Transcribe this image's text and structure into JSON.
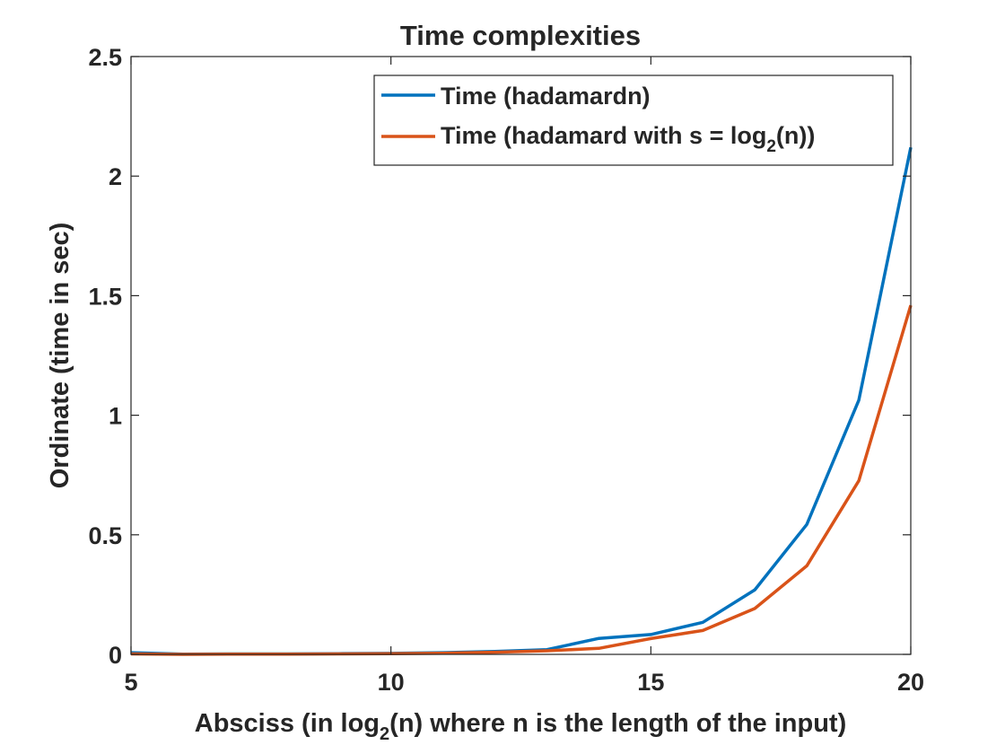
{
  "chart_data": {
    "type": "line",
    "title": "Time complexities",
    "xlabel": {
      "pre": "Absciss (in log",
      "sub": "2",
      "post": "(n) where n is the length of the input)"
    },
    "ylabel": "Ordinate (time in sec)",
    "xlim": [
      5,
      20
    ],
    "ylim": [
      0,
      2.5
    ],
    "xticks": [
      5,
      10,
      15,
      20
    ],
    "xtick_labels": [
      "5",
      "10",
      "15",
      "20"
    ],
    "yticks": [
      0,
      0.5,
      1,
      1.5,
      2,
      2.5
    ],
    "ytick_labels": [
      "0",
      "0.5",
      "1",
      "1.5",
      "2",
      "2.5"
    ],
    "grid": false,
    "legend_position": "top-right",
    "x": [
      5,
      6,
      7,
      8,
      9,
      10,
      11,
      12,
      13,
      14,
      15,
      16,
      17,
      18,
      19,
      20
    ],
    "series": [
      {
        "name": "Time (hadamardn)",
        "color": "#0072BD",
        "values": [
          0.007,
          0.001,
          0.002,
          0.002,
          0.003,
          0.004,
          0.007,
          0.012,
          0.02,
          0.067,
          0.083,
          0.134,
          0.27,
          0.543,
          1.063,
          2.12
        ]
      },
      {
        "name": {
          "pre": "Time (hadamard with s = log",
          "sub": "2",
          "post": "(n))"
        },
        "color": "#D95319",
        "values": [
          0.002,
          0.0,
          0.001,
          0.001,
          0.002,
          0.003,
          0.005,
          0.009,
          0.015,
          0.025,
          0.066,
          0.1,
          0.192,
          0.37,
          0.726,
          1.46
        ]
      }
    ]
  }
}
